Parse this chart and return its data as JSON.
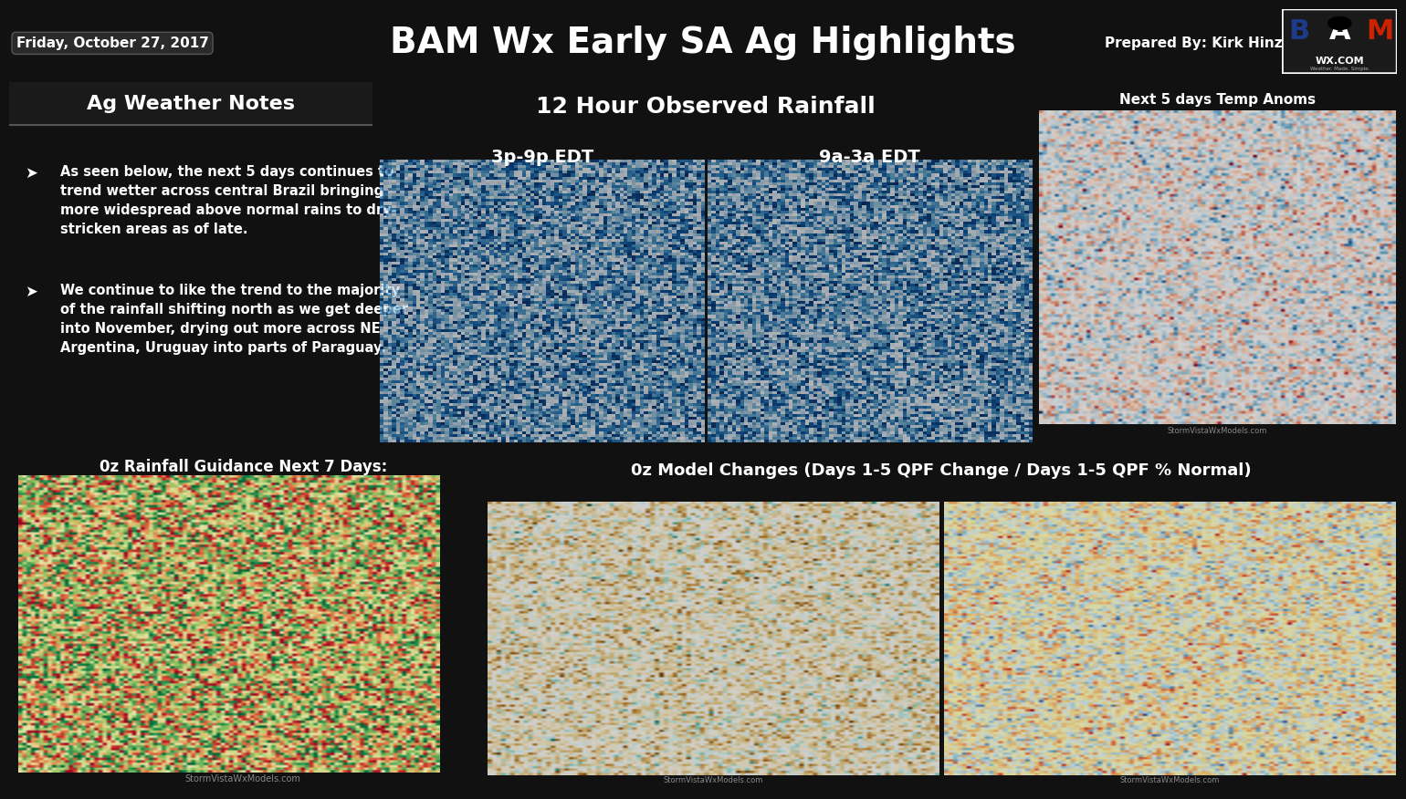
{
  "title": "BAM Wx Early SA Ag Highlights",
  "date": "Friday, October 27, 2017",
  "prepared_by": "Prepared By: Kirk Hinz",
  "bg_color": "#111111",
  "header_bg": "#1c1c1c",
  "panel_bg": "#0a0a0a",
  "text_color": "#ffffff",
  "accent_color": "#333333",
  "ag_notes_title": "Ag Weather Notes",
  "bullet1": "As seen below, the next 5 days continues to\ntrend wetter across central Brazil bringing\nmore widespread above normal rains to dry-\nstricken areas as of late.",
  "bullet2": "We continue to like the trend to the majority\nof the rainfall shifting north as we get deeper\ninto November, drying out more across NE\nArgentina, Uruguay into parts of Paraguay.",
  "section2_title": "12 Hour Observed Rainfall",
  "section2_sub1": "3p-9p EDT",
  "section2_sub2": "9a-3a EDT",
  "section3_title": "Next 5 days Temp Anoms",
  "section4_title": "0z Rainfall Guidance Next 7 Days:",
  "section5_title": "0z Model Changes (Days 1-5 QPF Change / Days 1-5 QPF % Normal)",
  "watermark": "StormVistaWxModels.com",
  "title_fontsize": 28,
  "header_fontsize": 11,
  "section_title_fontsize": 16,
  "sub_title_fontsize": 14,
  "body_fontsize": 10.5,
  "bullet_fontsize": 10.5
}
